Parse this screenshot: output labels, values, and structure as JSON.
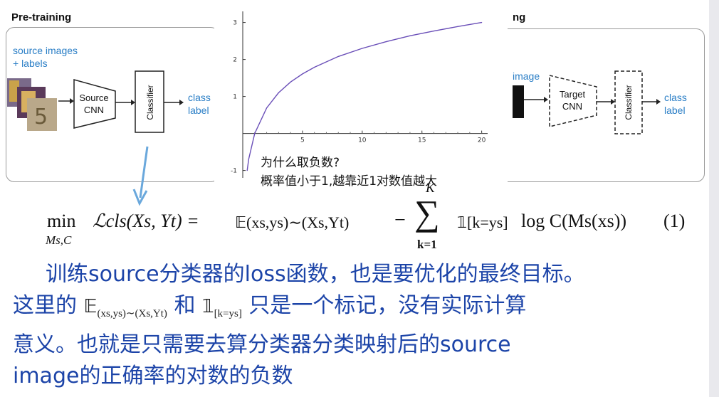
{
  "left_panel": {
    "title": "Pre-training",
    "input_label_line1": "source images",
    "input_label_line2": "+ labels",
    "encoder_line1": "Source",
    "encoder_line2": "CNN",
    "classifier": "Classifier",
    "output_line1": "class",
    "output_line2": "label"
  },
  "right_panel": {
    "title_visible": "ng",
    "input_label": "image",
    "encoder_line1": "Target",
    "encoder_line2": "CNN",
    "classifier": "Classifier",
    "output_line1": "class",
    "output_line2": "label"
  },
  "annotation": {
    "question": "为什么取负数?",
    "answer": "概率值小于1,越靠近1对数值越大"
  },
  "chart_data": {
    "type": "line",
    "function": "ln(x)",
    "x": [
      0.37,
      0.5,
      1,
      2,
      3,
      4,
      5,
      6,
      8,
      10,
      12,
      14,
      16,
      18,
      20
    ],
    "y": [
      -1.0,
      -0.69,
      0.0,
      0.69,
      1.1,
      1.39,
      1.61,
      1.79,
      2.08,
      2.3,
      2.48,
      2.64,
      2.77,
      2.89,
      3.0
    ],
    "xlim": [
      0,
      20.5
    ],
    "ylim": [
      -1.2,
      3.3
    ],
    "x_ticks": [
      "5",
      "10",
      "15",
      "20"
    ],
    "y_ticks": [
      "-1",
      "1",
      "2",
      "3"
    ],
    "line_color": "#6a4fb8",
    "grid": false
  },
  "equation": {
    "min_var": "min",
    "min_sub": "Ms,C",
    "loss": "ℒcls(Xs, Yt) =",
    "expectation": "𝔼(xs,ys)∼(Xs,Yt)",
    "minus_sum": "−",
    "sum_top": "K",
    "sum_sign": "∑",
    "sum_bottom": "k=1",
    "indicator": "𝟙[k=ys]",
    "log_term": "log C(Ms(xs))",
    "number": "(1)"
  },
  "note": {
    "line1": "训练source分类器的loss函数，也是要优化的最终目标。",
    "line2_pre": "这里的",
    "line2_sym1": "𝔼",
    "line2_sym1_sub": "(xs,ys)∼(Xs,Yt)",
    "line2_mid": "和",
    "line2_sym2": "𝟙",
    "line2_sym2_sub": "[k=ys]",
    "line2_post": "只是一个标记，没有实际计算",
    "line3": "意义。也就是只需要去算分类器分类映射后的source",
    "line4": "image的正确率的对数的负数"
  },
  "colors": {
    "text_blue": "#2a7ec6",
    "note_blue": "#1c44a8",
    "arrow_blue": "#6aa8dc",
    "curve": "#6a4fb8"
  }
}
